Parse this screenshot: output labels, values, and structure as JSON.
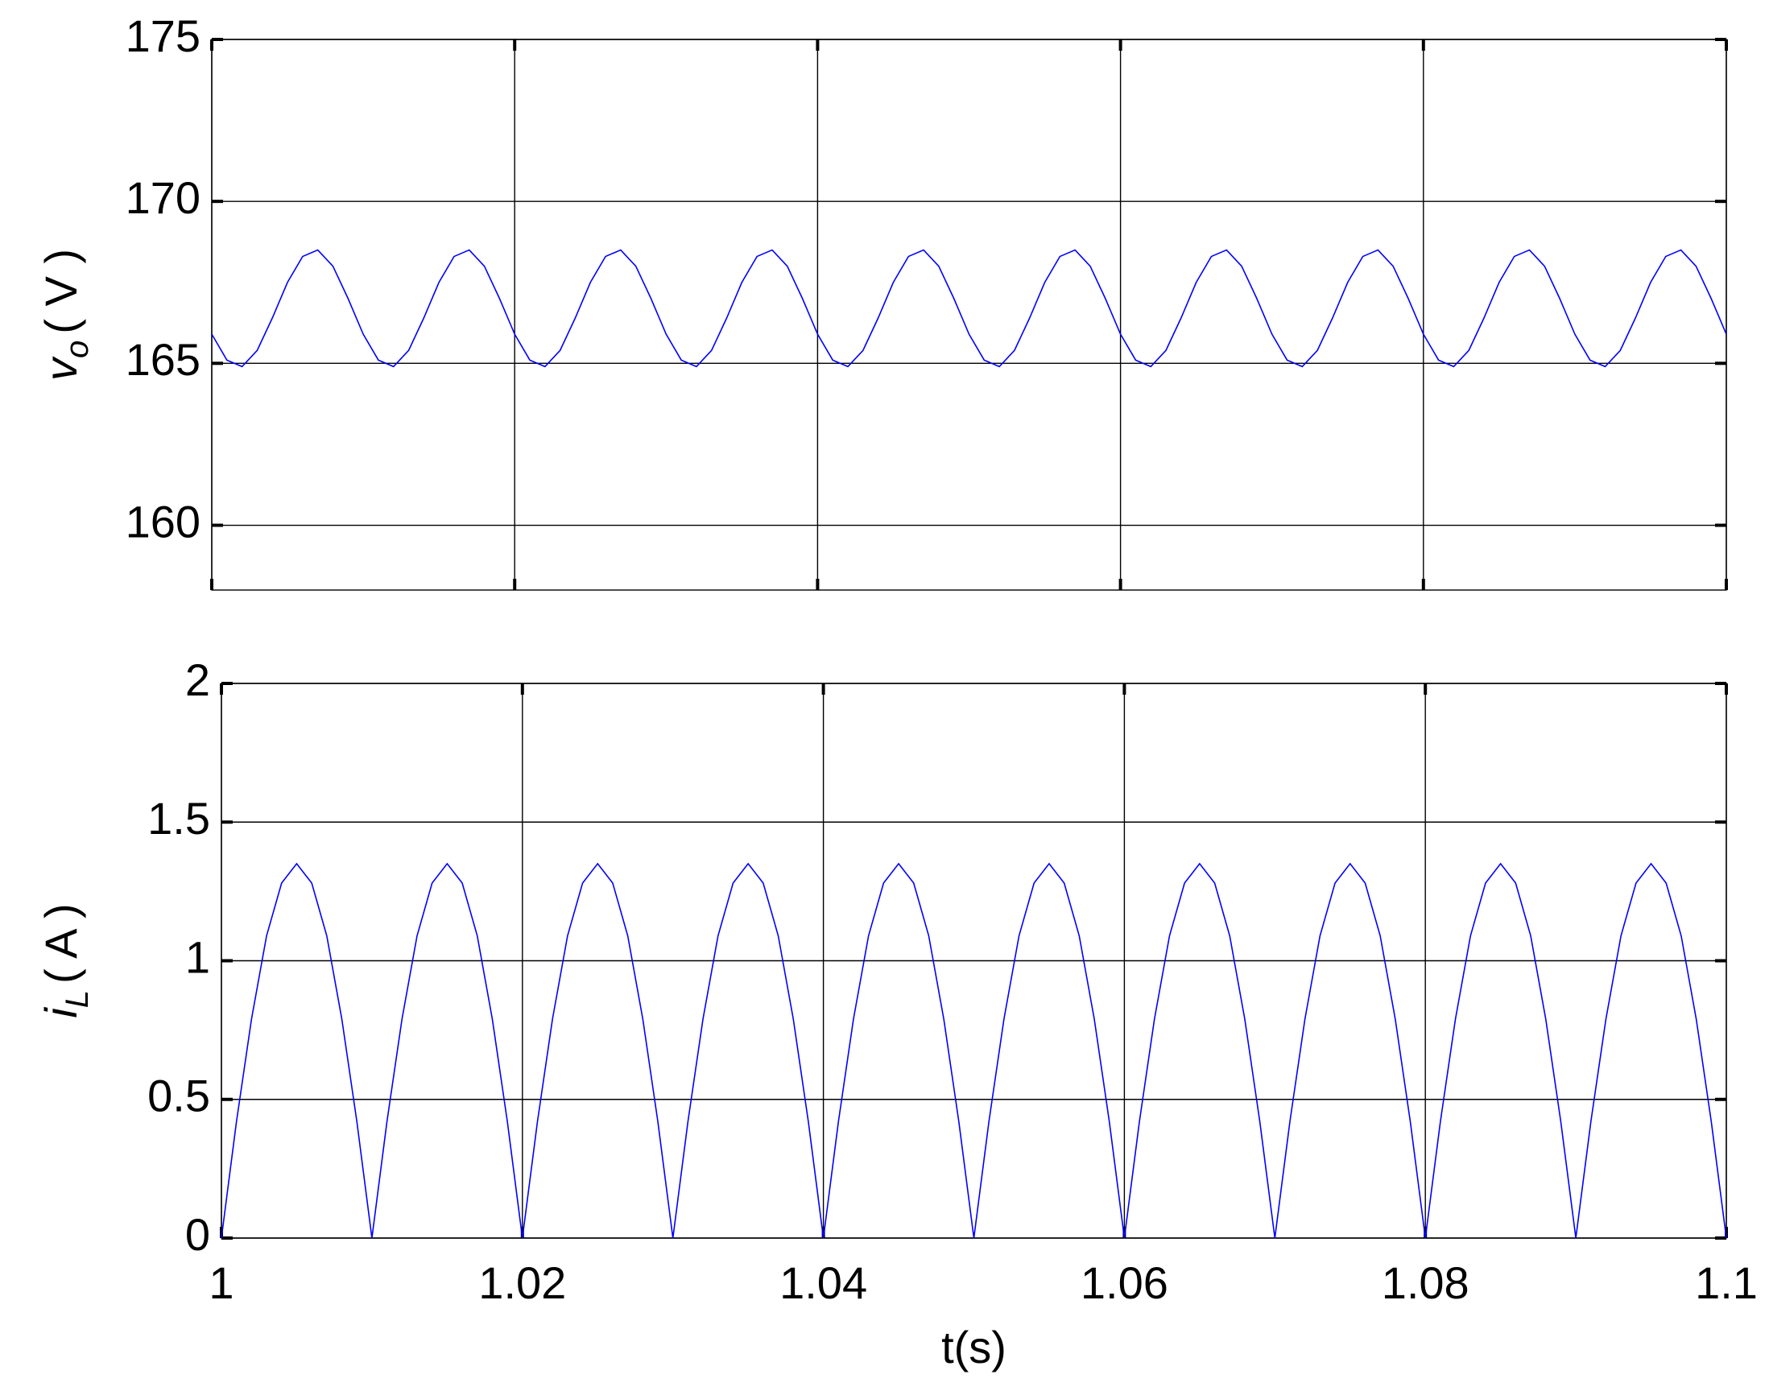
{
  "chart_data": [
    {
      "type": "line",
      "ylabel": "v",
      "ylabel_sub": "o",
      "ylabel_unit": "( V )",
      "xlim": [
        1,
        1.1
      ],
      "xticks": [
        1,
        1.02,
        1.04,
        1.06,
        1.08,
        1.1
      ],
      "xticklabels": false,
      "ylim": [
        158,
        175
      ],
      "yticks": [
        160,
        165,
        170,
        175
      ],
      "grid": true,
      "x": [
        1,
        1.001,
        1.002,
        1.003,
        1.004,
        1.005,
        1.006,
        1.007,
        1.008,
        1.009,
        1.01,
        1.011,
        1.012,
        1.013,
        1.014,
        1.015,
        1.016,
        1.017,
        1.018,
        1.019,
        1.02,
        1.021,
        1.022,
        1.023,
        1.024,
        1.025,
        1.026,
        1.027,
        1.028,
        1.029,
        1.03,
        1.031,
        1.032,
        1.033,
        1.034,
        1.035,
        1.036,
        1.037,
        1.038,
        1.039,
        1.04,
        1.041,
        1.042,
        1.043,
        1.044,
        1.045,
        1.046,
        1.047,
        1.048,
        1.049,
        1.05,
        1.051,
        1.052,
        1.053,
        1.054,
        1.055,
        1.056,
        1.057,
        1.058,
        1.059,
        1.06,
        1.061,
        1.062,
        1.063,
        1.064,
        1.065,
        1.066,
        1.067,
        1.068,
        1.069,
        1.07,
        1.071,
        1.072,
        1.073,
        1.074,
        1.075,
        1.076,
        1.077,
        1.078,
        1.079,
        1.08,
        1.081,
        1.082,
        1.083,
        1.084,
        1.085,
        1.086,
        1.087,
        1.088,
        1.089,
        1.09,
        1.091,
        1.092,
        1.093,
        1.094,
        1.095,
        1.096,
        1.097,
        1.098,
        1.099,
        1.1
      ],
      "series": [
        {
          "color": "#0000ff",
          "values": [
            165.9,
            165.1,
            164.9,
            165.4,
            166.4,
            167.5,
            168.3,
            168.5,
            168.0,
            167.0,
            165.9,
            165.1,
            164.9,
            165.4,
            166.4,
            167.5,
            168.3,
            168.5,
            168.0,
            167.0,
            165.9,
            165.1,
            164.9,
            165.4,
            166.4,
            167.5,
            168.3,
            168.5,
            168.0,
            167.0,
            165.9,
            165.1,
            164.9,
            165.4,
            166.4,
            167.5,
            168.3,
            168.5,
            168.0,
            167.0,
            165.9,
            165.1,
            164.9,
            165.4,
            166.4,
            167.5,
            168.3,
            168.5,
            168.0,
            167.0,
            165.9,
            165.1,
            164.9,
            165.4,
            166.4,
            167.5,
            168.3,
            168.5,
            168.0,
            167.0,
            165.9,
            165.1,
            164.9,
            165.4,
            166.4,
            167.5,
            168.3,
            168.5,
            168.0,
            167.0,
            165.9,
            165.1,
            164.9,
            165.4,
            166.4,
            167.5,
            168.3,
            168.5,
            168.0,
            167.0,
            165.9,
            165.1,
            164.9,
            165.4,
            166.4,
            167.5,
            168.3,
            168.5,
            168.0,
            167.0,
            165.9,
            165.1,
            164.9,
            165.4,
            166.4,
            167.5,
            168.3,
            168.5,
            168.0,
            167.0,
            165.9
          ]
        }
      ]
    },
    {
      "type": "line",
      "ylabel": "i",
      "ylabel_sub": "L",
      "ylabel_unit": "( A )",
      "xlabel": "t(s)",
      "xlim": [
        1,
        1.1
      ],
      "xticks": [
        1,
        1.02,
        1.04,
        1.06,
        1.08,
        1.1
      ],
      "xticklabels": true,
      "ylim": [
        0,
        2
      ],
      "yticks": [
        0,
        0.5,
        1,
        1.5,
        2
      ],
      "grid": true,
      "x": [
        1,
        1.001,
        1.002,
        1.003,
        1.004,
        1.005,
        1.006,
        1.007,
        1.008,
        1.009,
        1.01,
        1.011,
        1.012,
        1.013,
        1.014,
        1.015,
        1.016,
        1.017,
        1.018,
        1.019,
        1.02,
        1.021,
        1.022,
        1.023,
        1.024,
        1.025,
        1.026,
        1.027,
        1.028,
        1.029,
        1.03,
        1.031,
        1.032,
        1.033,
        1.034,
        1.035,
        1.036,
        1.037,
        1.038,
        1.039,
        1.04,
        1.041,
        1.042,
        1.043,
        1.044,
        1.045,
        1.046,
        1.047,
        1.048,
        1.049,
        1.05,
        1.051,
        1.052,
        1.053,
        1.054,
        1.055,
        1.056,
        1.057,
        1.058,
        1.059,
        1.06,
        1.061,
        1.062,
        1.063,
        1.064,
        1.065,
        1.066,
        1.067,
        1.068,
        1.069,
        1.07,
        1.071,
        1.072,
        1.073,
        1.074,
        1.075,
        1.076,
        1.077,
        1.078,
        1.079,
        1.08,
        1.081,
        1.082,
        1.083,
        1.084,
        1.085,
        1.086,
        1.087,
        1.088,
        1.089,
        1.09,
        1.091,
        1.092,
        1.093,
        1.094,
        1.095,
        1.096,
        1.097,
        1.098,
        1.099,
        1.1
      ],
      "series": [
        {
          "color": "#0000ff",
          "values": [
            0,
            0.42,
            0.79,
            1.09,
            1.28,
            1.35,
            1.28,
            1.09,
            0.79,
            0.42,
            0,
            0.42,
            0.79,
            1.09,
            1.28,
            1.35,
            1.28,
            1.09,
            0.79,
            0.42,
            0,
            0.42,
            0.79,
            1.09,
            1.28,
            1.35,
            1.28,
            1.09,
            0.79,
            0.42,
            0,
            0.42,
            0.79,
            1.09,
            1.28,
            1.35,
            1.28,
            1.09,
            0.79,
            0.42,
            0,
            0.42,
            0.79,
            1.09,
            1.28,
            1.35,
            1.28,
            1.09,
            0.79,
            0.42,
            0,
            0.42,
            0.79,
            1.09,
            1.28,
            1.35,
            1.28,
            1.09,
            0.79,
            0.42,
            0,
            0.42,
            0.79,
            1.09,
            1.28,
            1.35,
            1.28,
            1.09,
            0.79,
            0.42,
            0,
            0.42,
            0.79,
            1.09,
            1.28,
            1.35,
            1.28,
            1.09,
            0.79,
            0.42,
            0,
            0.42,
            0.79,
            1.09,
            1.28,
            1.35,
            1.28,
            1.09,
            0.79,
            0.42,
            0,
            0.42,
            0.79,
            1.09,
            1.28,
            1.35,
            1.28,
            1.09,
            0.79,
            0.42,
            0
          ]
        }
      ]
    }
  ]
}
